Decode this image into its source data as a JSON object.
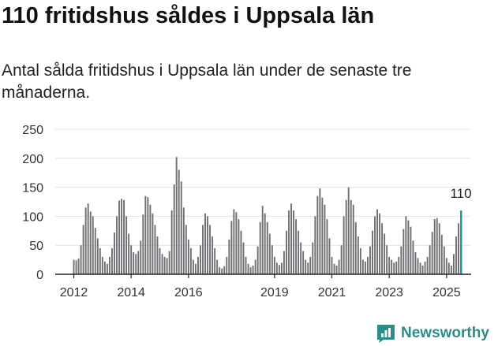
{
  "title": "110 fritidshus såldes i Uppsala län",
  "subtitle": "Antal sålda fritidshus i Uppsala län under de senaste tre månaderna.",
  "brand": {
    "name": "Newsworthy",
    "icon": "newsworthy-logo-icon",
    "color": "#2b8e86"
  },
  "colors": {
    "bar": "#6e6e73",
    "highlight": "#1a9a8c",
    "grid": "#e3e3e3",
    "axis": "#222222"
  },
  "chart_data": {
    "type": "bar",
    "x_unit": "monthly, 3-month rolling total",
    "start": "2012-01",
    "end": "2025-07",
    "ylim": [
      0,
      250
    ],
    "yticks": [
      0,
      50,
      100,
      150,
      200,
      250
    ],
    "xtick_labels": [
      {
        "label": "2012",
        "at": "2012-01"
      },
      {
        "label": "2014",
        "at": "2014-01"
      },
      {
        "label": "2016",
        "at": "2016-01"
      },
      {
        "label": "2019",
        "at": "2019-01"
      },
      {
        "label": "2021",
        "at": "2021-01"
      },
      {
        "label": "2023",
        "at": "2023-01"
      },
      {
        "label": "2025",
        "at": "2025-01"
      }
    ],
    "grid": true,
    "legend": "none",
    "highlight": {
      "at": "2025-07",
      "value": 110,
      "label": "110"
    },
    "values": [
      25,
      24,
      27,
      50,
      85,
      115,
      122,
      108,
      100,
      80,
      62,
      45,
      30,
      22,
      18,
      30,
      45,
      72,
      100,
      127,
      130,
      128,
      100,
      70,
      50,
      38,
      35,
      40,
      58,
      103,
      135,
      133,
      120,
      105,
      85,
      65,
      45,
      35,
      30,
      28,
      40,
      110,
      155,
      202,
      180,
      160,
      115,
      85,
      60,
      45,
      25,
      18,
      30,
      50,
      85,
      105,
      100,
      85,
      65,
      45,
      25,
      12,
      10,
      14,
      30,
      60,
      92,
      112,
      107,
      95,
      75,
      55,
      30,
      18,
      12,
      15,
      25,
      48,
      90,
      118,
      105,
      90,
      70,
      50,
      30,
      20,
      16,
      20,
      40,
      75,
      110,
      122,
      110,
      95,
      75,
      55,
      40,
      25,
      20,
      30,
      55,
      100,
      135,
      148,
      132,
      120,
      95,
      62,
      30,
      18,
      15,
      25,
      50,
      100,
      128,
      150,
      128,
      120,
      90,
      65,
      45,
      25,
      22,
      30,
      48,
      75,
      100,
      112,
      105,
      88,
      70,
      50,
      30,
      25,
      20,
      22,
      30,
      48,
      78,
      100,
      93,
      82,
      58,
      38,
      28,
      20,
      15,
      22,
      30,
      50,
      73,
      95,
      97,
      88,
      68,
      48,
      28,
      20,
      15,
      35,
      65,
      88,
      110
    ]
  }
}
